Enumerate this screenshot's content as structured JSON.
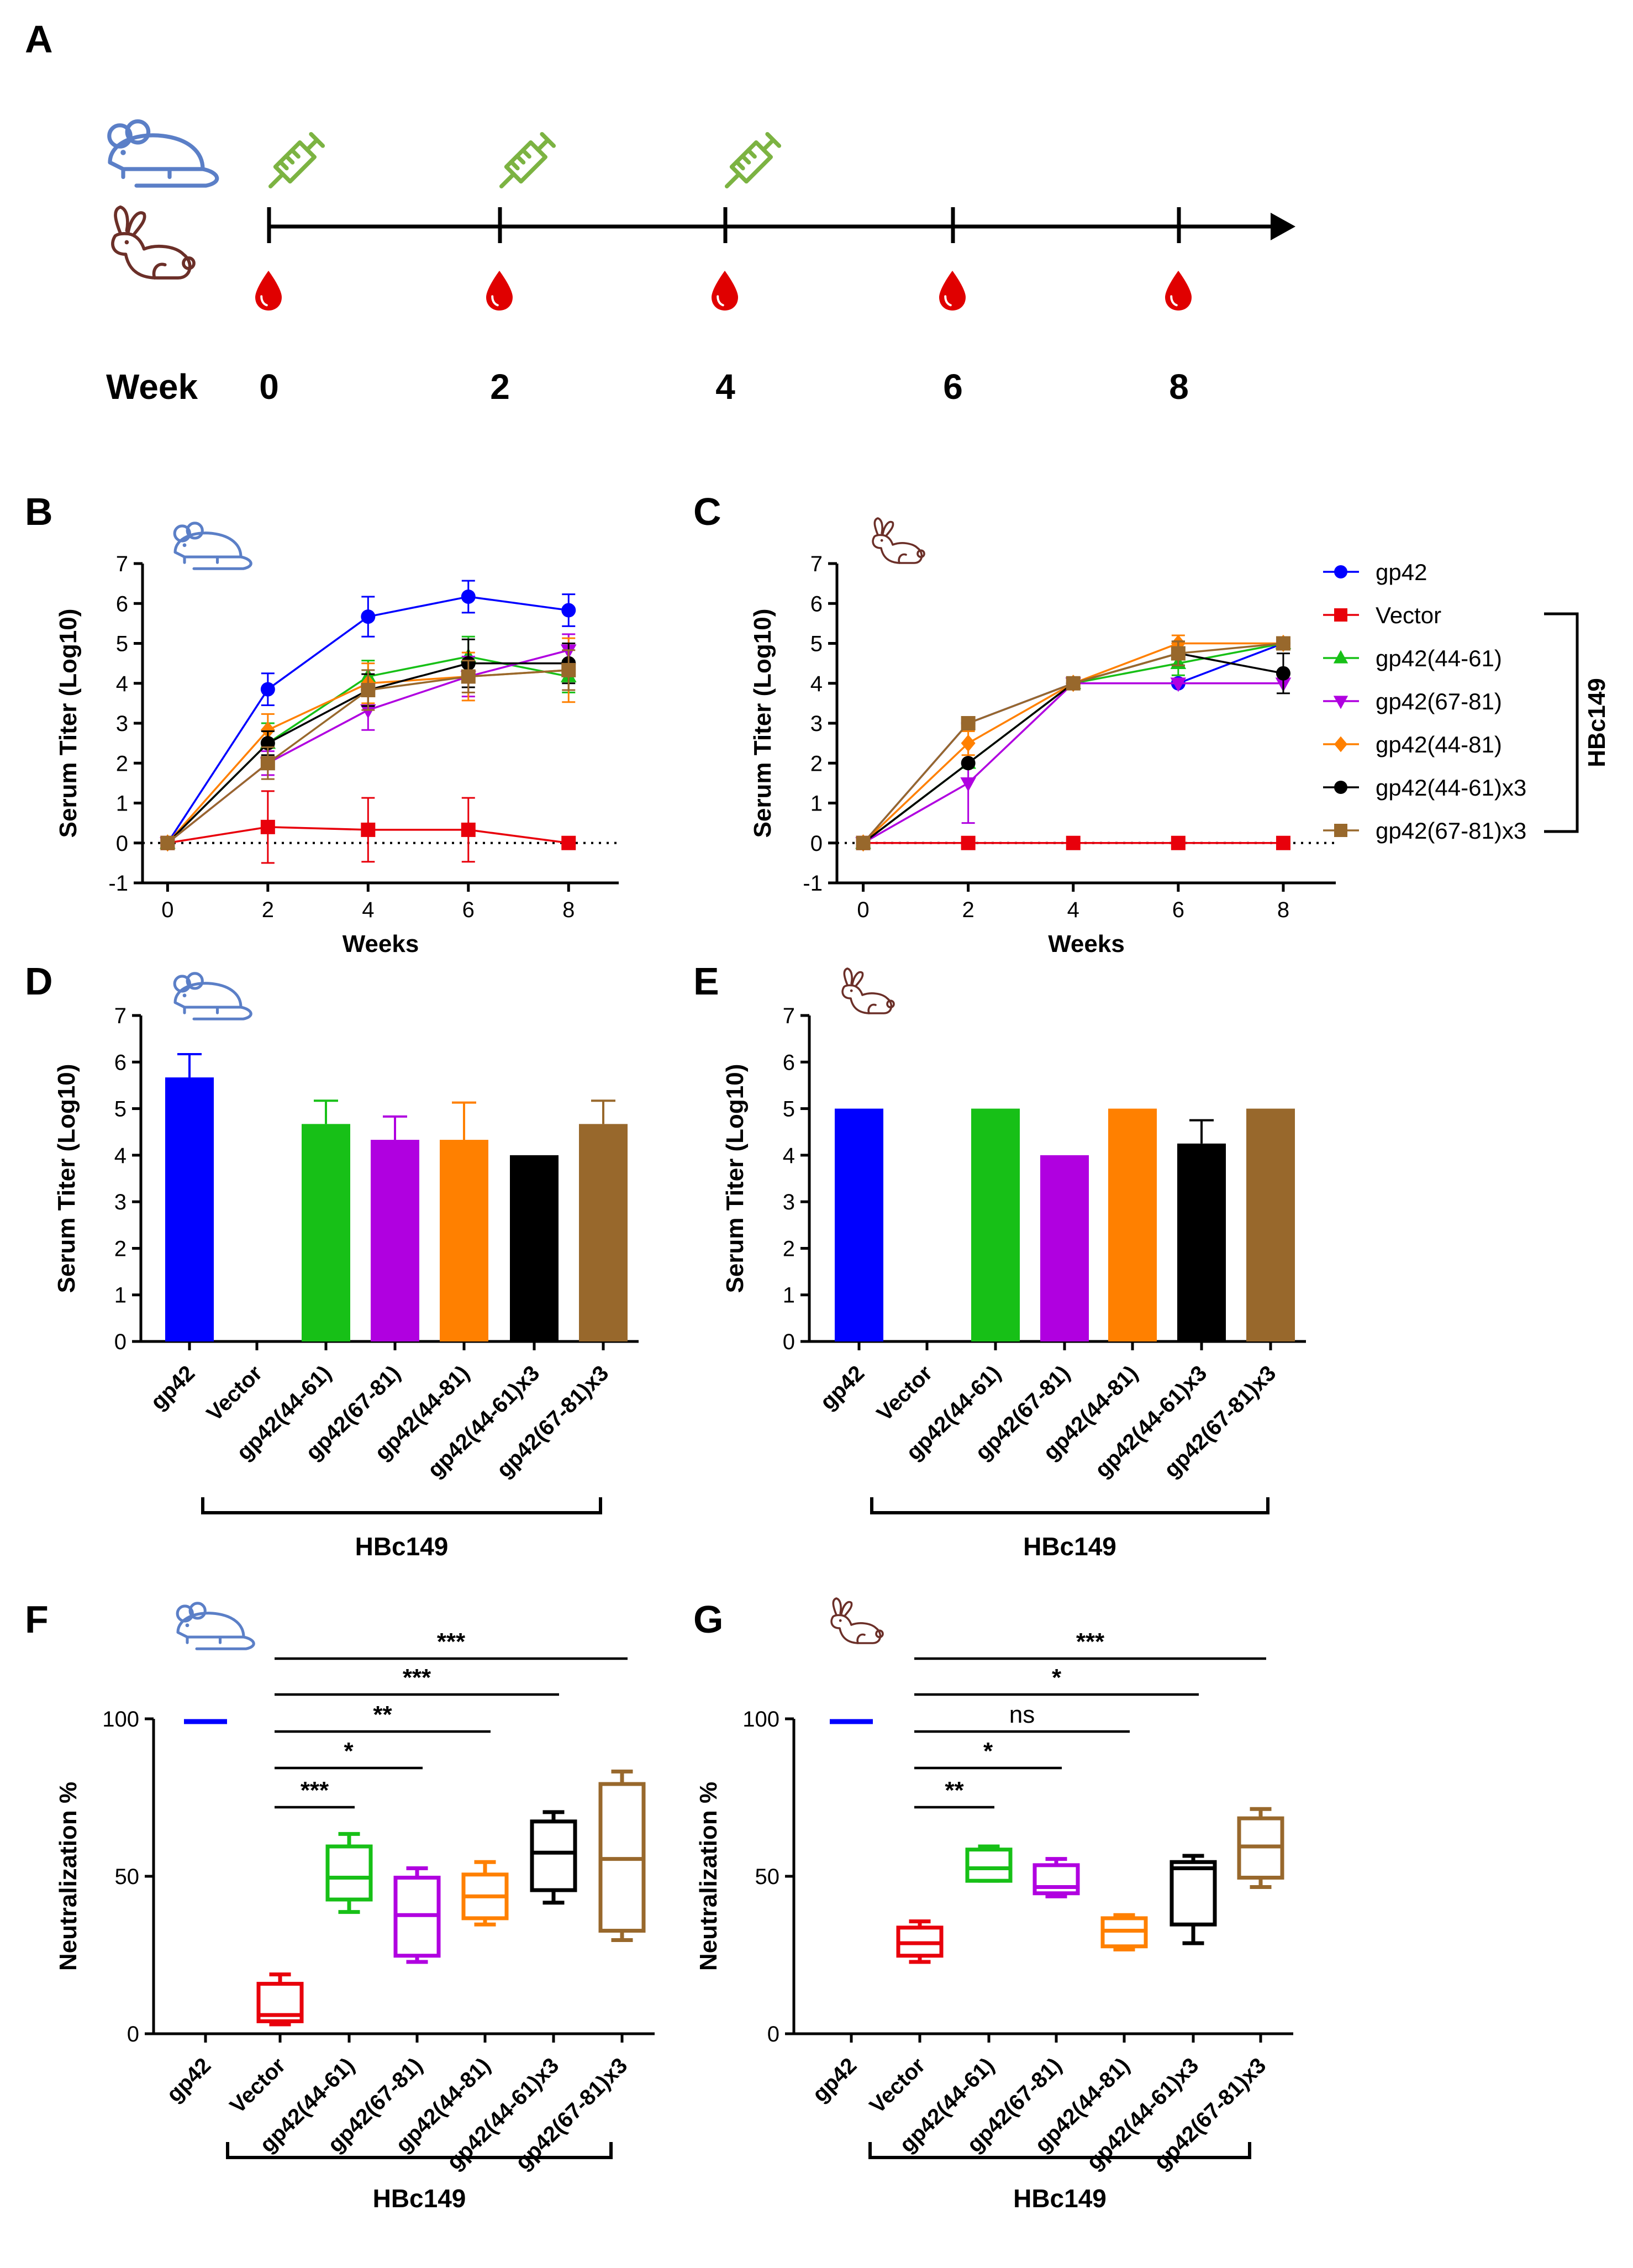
{
  "figure": {
    "panels": {
      "A": "A",
      "B": "B",
      "C": "C",
      "D": "D",
      "E": "E",
      "F": "F",
      "G": "G"
    }
  },
  "timeline": {
    "week_label": "Week",
    "weeks": [
      "0",
      "2",
      "4",
      "6",
      "8"
    ],
    "injection_weeks": [
      0,
      2,
      4
    ],
    "bleed_weeks": [
      0,
      2,
      4,
      6,
      8
    ],
    "syringe_color": "#7cb342",
    "drop_color": "#e00000",
    "mouse_color": "#5b7fc7",
    "rabbit_color": "#6b2f28"
  },
  "groups": [
    "gp42",
    "Vector",
    "gp42(44-61)",
    "gp42(67-81)",
    "gp42(44-81)",
    "gp42(44-61)x3",
    "gp42(67-81)x3"
  ],
  "colors": [
    "#0000ff",
    "#e8000b",
    "#17c017",
    "#b000e0",
    "#ff8000",
    "#000000",
    "#98682c"
  ],
  "markers": [
    "circle",
    "square",
    "triangle",
    "triangle-down",
    "diamond",
    "circle",
    "square"
  ],
  "bracket_label": "HBc149",
  "chart_data": [
    {
      "id": "B",
      "type": "line",
      "species": "mouse",
      "title": "",
      "xlabel": "Weeks",
      "ylabel": "Serum Titer (Log10)",
      "xlim": [
        -0.5,
        9
      ],
      "ylim": [
        -1,
        7
      ],
      "xticks": [
        "0",
        "2",
        "4",
        "6",
        "8"
      ],
      "yticks": [
        "-1",
        "0",
        "1",
        "2",
        "3",
        "4",
        "5",
        "6",
        "7"
      ],
      "x": [
        0,
        2,
        4,
        6,
        8
      ],
      "series": [
        {
          "name": "gp42",
          "values": [
            0,
            3.85,
            5.67,
            6.17,
            5.83
          ],
          "err": [
            0,
            0.4,
            0.5,
            0.4,
            0.4
          ]
        },
        {
          "name": "Vector",
          "values": [
            0,
            0.4,
            0.33,
            0.33,
            0
          ],
          "err": [
            0,
            0.9,
            0.8,
            0.8,
            0
          ]
        },
        {
          "name": "gp42(44-61)",
          "values": [
            0,
            2.5,
            4.17,
            4.67,
            4.17
          ],
          "err": [
            0,
            0.5,
            0.4,
            0.5,
            0.4
          ]
        },
        {
          "name": "gp42(67-81)",
          "values": [
            0,
            2.0,
            3.33,
            4.17,
            4.83
          ],
          "err": [
            0,
            0.3,
            0.5,
            0.5,
            0.4
          ]
        },
        {
          "name": "gp42(44-81)",
          "values": [
            0,
            2.83,
            4.0,
            4.17,
            4.33
          ],
          "err": [
            0,
            0.4,
            0.5,
            0.6,
            0.8
          ]
        },
        {
          "name": "gp42(44-61)x3",
          "values": [
            0,
            2.5,
            3.83,
            4.5,
            4.5
          ],
          "err": [
            0,
            0.3,
            0.4,
            0.6,
            0.5
          ]
        },
        {
          "name": "gp42(67-81)x3",
          "values": [
            0,
            2.0,
            3.83,
            4.17,
            4.33
          ],
          "err": [
            0,
            0.4,
            0.5,
            0.4,
            0.5
          ]
        }
      ]
    },
    {
      "id": "C",
      "type": "line",
      "species": "rabbit",
      "title": "",
      "xlabel": "Weeks",
      "ylabel": "Serum Titer (Log10)",
      "xlim": [
        -0.5,
        9
      ],
      "ylim": [
        -1,
        7
      ],
      "xticks": [
        "0",
        "2",
        "4",
        "6",
        "8"
      ],
      "yticks": [
        "-1",
        "0",
        "1",
        "2",
        "3",
        "4",
        "5",
        "6",
        "7"
      ],
      "x": [
        0,
        2,
        4,
        6,
        8
      ],
      "legend_position": "right",
      "series": [
        {
          "name": "gp42",
          "values": [
            0,
            3.0,
            4.0,
            4.0,
            5.0
          ],
          "err": [
            0,
            0,
            0,
            0,
            0
          ]
        },
        {
          "name": "Vector",
          "values": [
            0,
            0,
            0,
            0,
            0
          ],
          "err": [
            0,
            0,
            0,
            0,
            0
          ]
        },
        {
          "name": "gp42(44-61)",
          "values": [
            0,
            2.0,
            4.0,
            4.5,
            5.0
          ],
          "err": [
            0,
            0,
            0,
            0.3,
            0
          ]
        },
        {
          "name": "gp42(67-81)",
          "values": [
            0,
            1.5,
            4.0,
            4.0,
            4.0
          ],
          "err": [
            0,
            1.0,
            0,
            0,
            0
          ]
        },
        {
          "name": "gp42(44-81)",
          "values": [
            0,
            2.5,
            4.0,
            5.0,
            5.0
          ],
          "err": [
            0,
            0.3,
            0,
            0.2,
            0
          ]
        },
        {
          "name": "gp42(44-61)x3",
          "values": [
            0,
            2.0,
            4.0,
            4.75,
            4.25
          ],
          "err": [
            0,
            0,
            0,
            0.3,
            0.5
          ]
        },
        {
          "name": "gp42(67-81)x3",
          "values": [
            0,
            3.0,
            4.0,
            4.75,
            5.0
          ],
          "err": [
            0,
            0,
            0,
            0.3,
            0
          ]
        }
      ]
    },
    {
      "id": "D",
      "type": "bar",
      "species": "mouse",
      "title": "",
      "xlabel": "",
      "ylabel": "Serum Titer (Log10)",
      "ylim": [
        0,
        7
      ],
      "yticks": [
        "0",
        "1",
        "2",
        "3",
        "4",
        "5",
        "6",
        "7"
      ],
      "categories": [
        "gp42",
        "Vector",
        "gp42(44-61)",
        "gp42(67-81)",
        "gp42(44-81)",
        "gp42(44-61)x3",
        "gp42(67-81)x3"
      ],
      "values": [
        5.67,
        0,
        4.67,
        4.33,
        4.33,
        4.0,
        4.67
      ],
      "err": [
        0.5,
        0,
        0.5,
        0.5,
        0.8,
        0,
        0.5
      ]
    },
    {
      "id": "E",
      "type": "bar",
      "species": "rabbit",
      "title": "",
      "xlabel": "",
      "ylabel": "Serum Titer (Log10)",
      "ylim": [
        0,
        7
      ],
      "yticks": [
        "0",
        "1",
        "2",
        "3",
        "4",
        "5",
        "6",
        "7"
      ],
      "categories": [
        "gp42",
        "Vector",
        "gp42(44-61)",
        "gp42(67-81)",
        "gp42(44-81)",
        "gp42(44-61)x3",
        "gp42(67-81)x3"
      ],
      "values": [
        5,
        0,
        5,
        4,
        5,
        4.25,
        5
      ],
      "err": [
        0,
        0,
        0,
        0,
        0,
        0.5,
        0
      ]
    },
    {
      "id": "F",
      "type": "box",
      "species": "mouse",
      "title": "",
      "xlabel": "",
      "ylabel": "Neutralization %",
      "ylim": [
        0,
        100
      ],
      "yticks": [
        "0",
        "50",
        "100"
      ],
      "categories": [
        "gp42",
        "Vector",
        "gp42(44-61)",
        "gp42(67-81)",
        "gp42(44-81)",
        "gp42(44-61)x3",
        "gp42(67-81)x3"
      ],
      "boxes": [
        {
          "single": 100
        },
        {
          "min": 3,
          "q1": 4,
          "median": 6,
          "q3": 16,
          "max": 19
        },
        {
          "min": 39,
          "q1": 43,
          "median": 50,
          "q3": 60,
          "max": 64
        },
        {
          "min": 23,
          "q1": 25,
          "median": 38,
          "q3": 50,
          "max": 53
        },
        {
          "min": 35,
          "q1": 37,
          "median": 44,
          "q3": 51,
          "max": 55
        },
        {
          "min": 42,
          "q1": 46,
          "median": 58,
          "q3": 68,
          "max": 71
        },
        {
          "min": 30,
          "q1": 33,
          "median": 56,
          "q3": 80,
          "max": 84
        }
      ],
      "significance": [
        {
          "from": 1,
          "to": 2,
          "label": "***"
        },
        {
          "from": 1,
          "to": 3,
          "label": "*"
        },
        {
          "from": 1,
          "to": 4,
          "label": "**"
        },
        {
          "from": 1,
          "to": 5,
          "label": "***"
        },
        {
          "from": 1,
          "to": 6,
          "label": "***"
        }
      ]
    },
    {
      "id": "G",
      "type": "box",
      "species": "rabbit",
      "title": "",
      "xlabel": "",
      "ylabel": "Neutralization %",
      "ylim": [
        0,
        100
      ],
      "yticks": [
        "0",
        "50",
        "100"
      ],
      "categories": [
        "gp42",
        "Vector",
        "gp42(44-61)",
        "gp42(67-81)",
        "gp42(44-81)",
        "gp42(44-61)x3",
        "gp42(67-81)x3"
      ],
      "boxes": [
        {
          "single": 100
        },
        {
          "min": 23,
          "q1": 25,
          "median": 29,
          "q3": 34,
          "max": 36
        },
        {
          "min": 49,
          "q1": 49,
          "median": 53,
          "q3": 59,
          "max": 60
        },
        {
          "min": 44,
          "q1": 45,
          "median": 47,
          "q3": 54,
          "max": 56
        },
        {
          "min": 27,
          "q1": 28,
          "median": 33,
          "q3": 37,
          "max": 38
        },
        {
          "min": 29,
          "q1": 35,
          "median": 53,
          "q3": 55,
          "max": 57
        },
        {
          "min": 47,
          "q1": 50,
          "median": 60,
          "q3": 69,
          "max": 72
        }
      ],
      "significance": [
        {
          "from": 1,
          "to": 2,
          "label": "**"
        },
        {
          "from": 1,
          "to": 3,
          "label": "*"
        },
        {
          "from": 1,
          "to": 4,
          "label": "ns"
        },
        {
          "from": 1,
          "to": 5,
          "label": "*"
        },
        {
          "from": 1,
          "to": 6,
          "label": "***"
        }
      ]
    }
  ]
}
